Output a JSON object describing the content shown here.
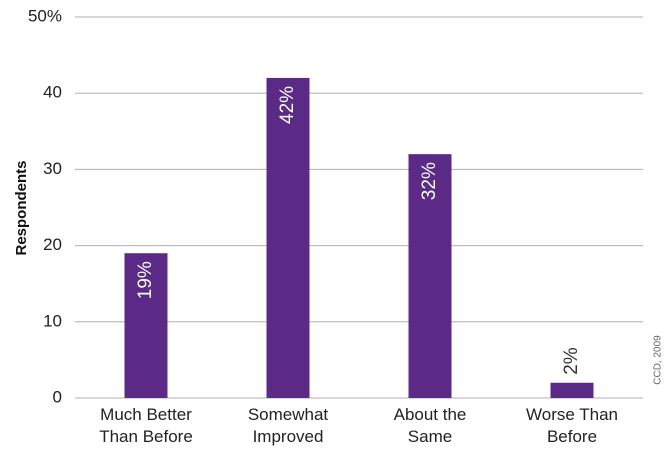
{
  "chart_data": {
    "type": "bar",
    "categories": [
      [
        "Much Better",
        "Than Before"
      ],
      [
        "Somewhat",
        "Improved"
      ],
      [
        "About the",
        "Same"
      ],
      [
        "Worse Than",
        "Before"
      ]
    ],
    "values": [
      19,
      42,
      32,
      2
    ],
    "data_labels": [
      "19%",
      "42%",
      "32%",
      "2%"
    ],
    "ylabel": "Respondents",
    "ylim": [
      0,
      50
    ],
    "yticks": [
      0,
      10,
      20,
      30,
      40,
      50
    ],
    "ytick_labels": [
      "0",
      "10",
      "20",
      "30",
      "40",
      "50%"
    ],
    "grid": true,
    "bar_color": "#5b2a86",
    "inside_label_color": "#ffffff",
    "outside_label_color": "#333333"
  },
  "credit": "CCD, 2009"
}
